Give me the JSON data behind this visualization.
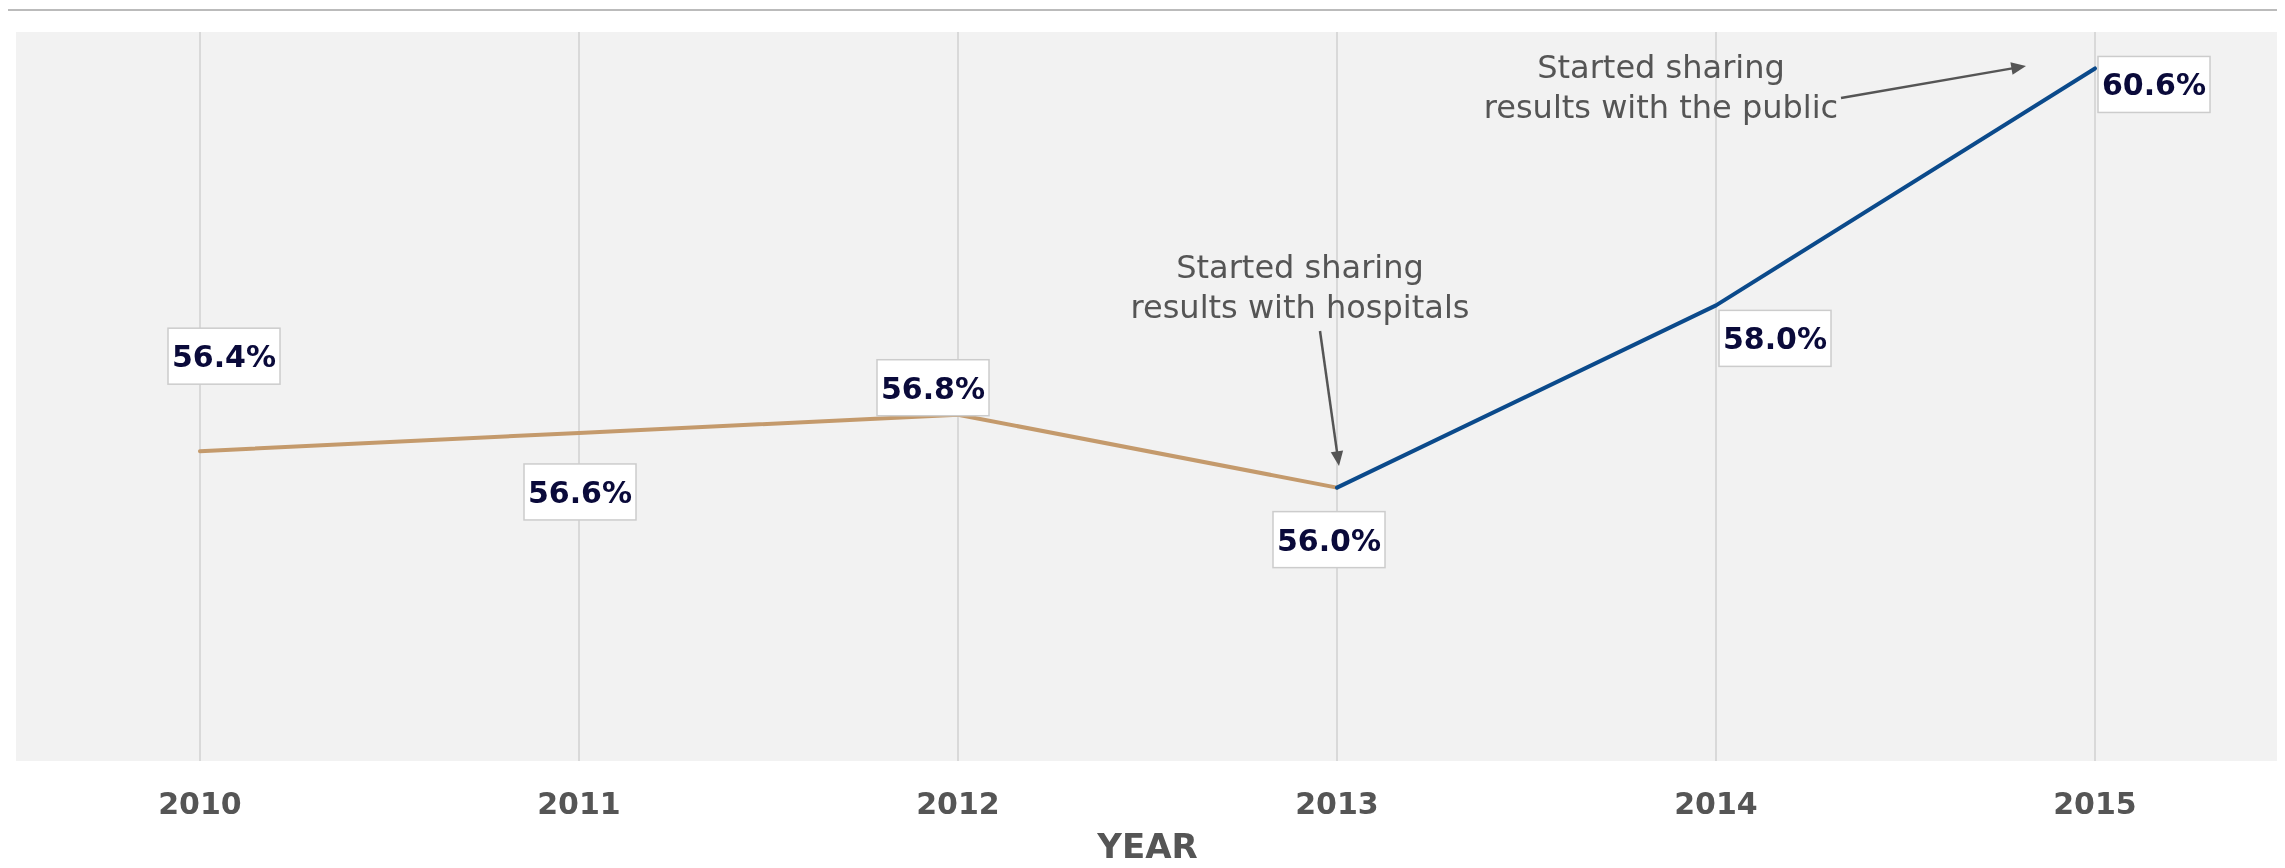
{
  "chart_data": {
    "type": "line",
    "xlabel": "YEAR",
    "categories": [
      "2010",
      "2011",
      "2012",
      "2013",
      "2014",
      "2015"
    ],
    "ylim": [
      53,
      61
    ],
    "tick_labels": "x",
    "grid": "x",
    "marker": "none",
    "line_style": "solid",
    "series": [
      {
        "color": "#c49a6c",
        "values": [
          56.4,
          56.6,
          56.8,
          56.0,
          null,
          null
        ],
        "value_labels": [
          "56.4%",
          "56.6%",
          "56.8%",
          "56.0%",
          null,
          null
        ]
      },
      {
        "color": "#0b4a8b",
        "values": [
          null,
          null,
          null,
          56.0,
          58.0,
          60.6
        ],
        "value_labels": [
          null,
          null,
          null,
          null,
          "58.0%",
          "60.6%"
        ]
      }
    ],
    "annotations": [
      "Started sharing\nresults with hospitals",
      "Started sharing\nresults with the public"
    ]
  }
}
